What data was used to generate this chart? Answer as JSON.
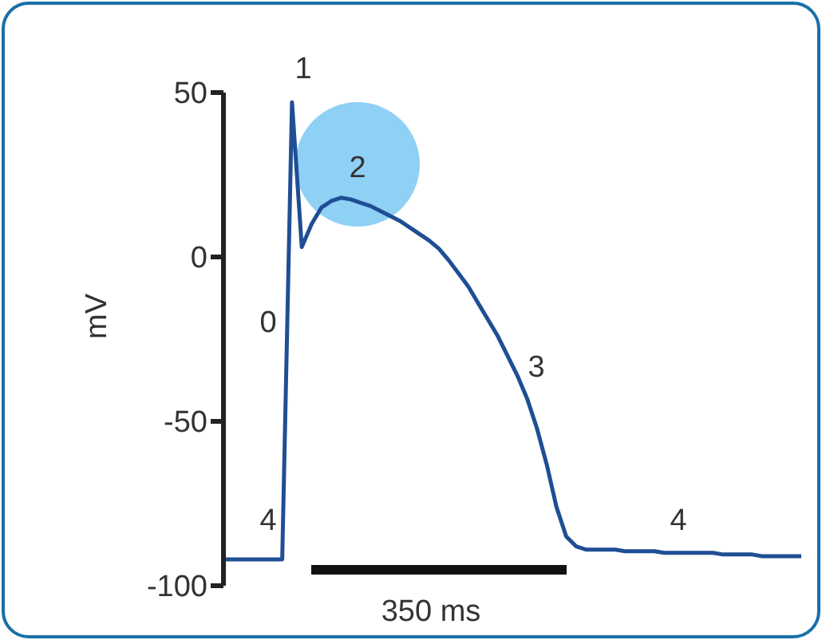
{
  "chart_data": {
    "type": "line",
    "ylabel": "mV",
    "color": "#1f4e94",
    "categories": [
      null,
      null,
      null,
      null,
      null,
      null,
      null,
      null,
      null,
      null,
      null,
      null,
      null,
      null,
      null,
      null,
      null,
      null,
      null,
      null,
      null,
      null,
      null,
      null,
      null,
      null,
      null,
      null,
      null,
      null,
      null,
      null,
      null,
      null,
      null,
      null,
      null,
      null,
      null,
      null,
      null,
      null,
      null,
      null,
      null,
      null,
      null,
      null,
      null,
      null,
      null,
      null,
      null,
      null,
      null,
      null,
      null,
      null,
      null,
      null
    ],
    "values": [
      -92,
      -92,
      -92,
      -92,
      -92,
      -92,
      -92,
      47,
      3,
      10,
      15,
      17,
      18,
      17.5,
      16.5,
      15.5,
      14,
      12.5,
      11,
      9,
      7,
      5,
      2.5,
      -1,
      -5,
      -9,
      -14,
      -19,
      -24,
      -30,
      -36,
      -43,
      -52,
      -63,
      -76,
      -85,
      -88,
      -89,
      -89,
      -89,
      -89,
      -89.5,
      -89.5,
      -89.5,
      -89.5,
      -90,
      -90,
      -90,
      -90,
      -90,
      -90,
      -90.5,
      -90.5,
      -90.5,
      -90.5,
      -91,
      -91,
      -91,
      -91,
      -91
    ],
    "ylim": [
      -100,
      50
    ],
    "yticks": [
      -100,
      -50,
      0,
      50
    ],
    "tick_labels": "y",
    "annotations": [
      "1",
      "2",
      "0",
      "3",
      "4",
      "4",
      "350 ms"
    ]
  }
}
